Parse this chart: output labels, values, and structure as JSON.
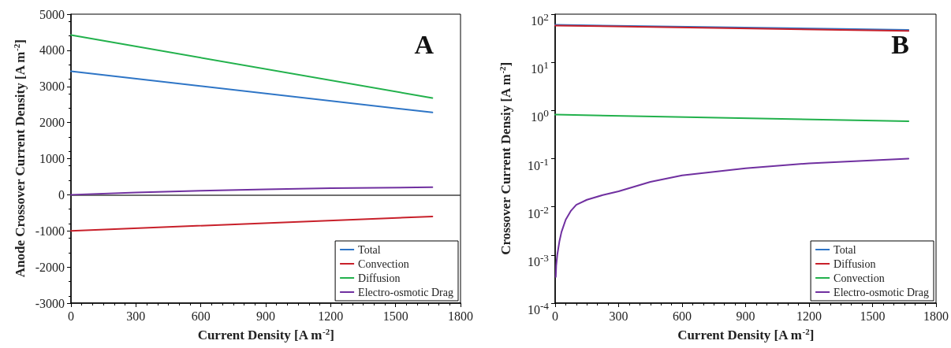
{
  "chart_data": [
    {
      "type": "line",
      "title": "A",
      "xlabel": "Current Density [A m$^{-2}$]",
      "ylabel": "Anode Crossover Current Density [A m$^{-2}$]",
      "xlim": [
        0,
        1800
      ],
      "xticks": [
        0,
        300,
        600,
        900,
        1200,
        1500,
        1800
      ],
      "ylim": [
        -3000,
        5000
      ],
      "yticks": [
        -3000,
        -2000,
        -1000,
        0,
        1000,
        2000,
        3000,
        4000,
        5000
      ],
      "grid": false,
      "legend": "bottom right",
      "marker": "none",
      "line_style": "solid",
      "ref_lines": [
        {
          "axis": "y",
          "value": 0,
          "color": "#404040"
        }
      ],
      "series": [
        {
          "name": "Total",
          "color": "#2e75c6",
          "x": [
            0,
            1670
          ],
          "values": [
            3420,
            2280
          ]
        },
        {
          "name": "Convection",
          "color": "#c8202a",
          "x": [
            0,
            1670
          ],
          "values": [
            -1000,
            -600
          ]
        },
        {
          "name": "Diffusion",
          "color": "#22b14c",
          "x": [
            0,
            1670
          ],
          "values": [
            4420,
            2680
          ]
        },
        {
          "name": "Electro-osmotic Drag",
          "color": "#7030a0",
          "x": [
            0,
            300,
            600,
            900,
            1200,
            1670
          ],
          "values": [
            0,
            60,
            110,
            150,
            180,
            210
          ]
        }
      ]
    },
    {
      "type": "line",
      "title": "B",
      "xlabel": "Current Density [A m$^{-2}$]",
      "ylabel": "Crossover Current Densiy [A m$^{-2}$]",
      "xlim": [
        0,
        1800
      ],
      "xticks": [
        0,
        300,
        600,
        900,
        1200,
        1500,
        1800
      ],
      "ylim": [
        0.0001,
        100
      ],
      "log": "y",
      "yticks": [
        {
          "value": 0.0001,
          "label": "10$^{-4}$"
        },
        {
          "value": 0.001,
          "label": "10$^{-3}$"
        },
        {
          "value": 0.01,
          "label": "10$^{-2}$"
        },
        {
          "value": 0.1,
          "label": "10$^{-1}$"
        },
        {
          "value": 1,
          "label": "10$^{0}$"
        },
        {
          "value": 10,
          "label": "10$^{1}$"
        },
        {
          "value": 100,
          "label": "10$^{2}$"
        }
      ],
      "grid": false,
      "legend": "bottom right",
      "marker": "none",
      "line_style": "solid",
      "series": [
        {
          "name": "Total",
          "color": "#2e75c6",
          "x": [
            0,
            1670
          ],
          "values": [
            60,
            47
          ]
        },
        {
          "name": "Diffusion",
          "color": "#c8202a",
          "x": [
            0,
            1670
          ],
          "values": [
            58,
            45
          ]
        },
        {
          "name": "Convection",
          "color": "#22b14c",
          "x": [
            0,
            1670
          ],
          "values": [
            0.82,
            0.6
          ]
        },
        {
          "name": "Electro-osmotic Drag",
          "color": "#7030a0",
          "x": [
            3,
            5,
            10,
            20,
            30,
            50,
            75,
            100,
            150,
            225,
            300,
            450,
            600,
            900,
            1200,
            1670
          ],
          "values": [
            0.00035,
            0.0006,
            0.001,
            0.0019,
            0.003,
            0.0054,
            0.0083,
            0.011,
            0.014,
            0.0175,
            0.021,
            0.033,
            0.045,
            0.063,
            0.08,
            0.1
          ]
        }
      ]
    }
  ]
}
